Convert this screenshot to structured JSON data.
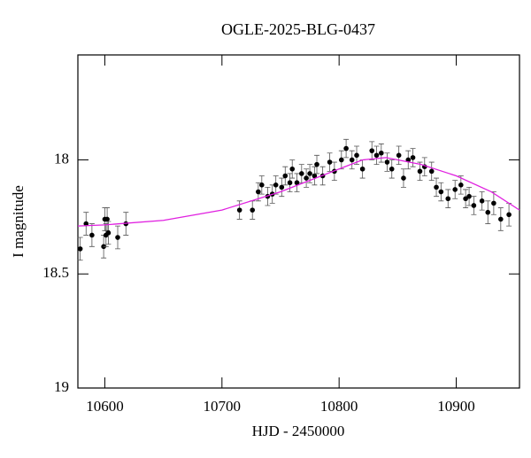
{
  "chart_data": {
    "type": "scatter",
    "title": "OGLE-2025-BLG-0437",
    "xlabel": "HJD - 2450000",
    "ylabel": "I magnitude",
    "xlim": [
      10577,
      10954
    ],
    "ylim": [
      19,
      17.54
    ],
    "xticks": [
      10600,
      10700,
      10800,
      10900
    ],
    "yticks": [
      18,
      18.5,
      19
    ],
    "series": [
      {
        "type": "scatter",
        "color": "#000000",
        "x": [
          10579,
          10584,
          10589,
          10599,
          10600,
          10601,
          10602,
          10603,
          10611,
          10618,
          10715,
          10726,
          10731,
          10734,
          10739,
          10743,
          10746,
          10751,
          10754,
          10758,
          10760,
          10764,
          10768,
          10772,
          10775,
          10779,
          10781,
          10786,
          10792,
          10796,
          10802,
          10806,
          10811,
          10815,
          10820,
          10828,
          10832,
          10836,
          10841,
          10845,
          10851,
          10855,
          10859,
          10863,
          10869,
          10873,
          10879,
          10883,
          10887,
          10893,
          10899,
          10904,
          10908,
          10911,
          10915,
          10922,
          10927,
          10932,
          10938,
          10945
        ],
        "values": [
          18.39,
          18.28,
          18.33,
          18.38,
          18.26,
          18.33,
          18.26,
          18.32,
          18.34,
          18.28,
          18.22,
          18.22,
          18.14,
          18.11,
          18.16,
          18.15,
          18.11,
          18.12,
          18.07,
          18.1,
          18.04,
          18.1,
          18.06,
          18.08,
          18.06,
          18.07,
          18.02,
          18.07,
          18.01,
          18.05,
          18.0,
          17.95,
          18.0,
          17.98,
          18.04,
          17.96,
          17.98,
          17.97,
          18.01,
          18.04,
          17.98,
          18.08,
          18.0,
          17.99,
          18.05,
          18.03,
          18.05,
          18.12,
          18.14,
          18.17,
          18.13,
          18.11,
          18.17,
          18.16,
          18.2,
          18.18,
          18.23,
          18.19,
          18.26,
          18.24
        ],
        "errors": [
          0.05,
          0.05,
          0.05,
          0.05,
          0.05,
          0.05,
          0.05,
          0.05,
          0.05,
          0.05,
          0.04,
          0.04,
          0.04,
          0.04,
          0.04,
          0.04,
          0.04,
          0.04,
          0.04,
          0.04,
          0.04,
          0.04,
          0.04,
          0.04,
          0.04,
          0.04,
          0.04,
          0.04,
          0.04,
          0.04,
          0.04,
          0.04,
          0.04,
          0.04,
          0.04,
          0.04,
          0.04,
          0.04,
          0.04,
          0.04,
          0.04,
          0.04,
          0.04,
          0.04,
          0.04,
          0.04,
          0.04,
          0.04,
          0.04,
          0.04,
          0.04,
          0.04,
          0.04,
          0.04,
          0.04,
          0.04,
          0.05,
          0.05,
          0.05,
          0.05
        ]
      },
      {
        "type": "line",
        "color": "#e020e0",
        "x": [
          10577,
          10600,
          10650,
          10700,
          10750,
          10800,
          10820,
          10840,
          10870,
          10900,
          10930,
          10954
        ],
        "values": [
          18.29,
          18.285,
          18.265,
          18.22,
          18.14,
          18.04,
          18.0,
          17.99,
          18.02,
          18.07,
          18.14,
          18.22
        ]
      }
    ]
  }
}
